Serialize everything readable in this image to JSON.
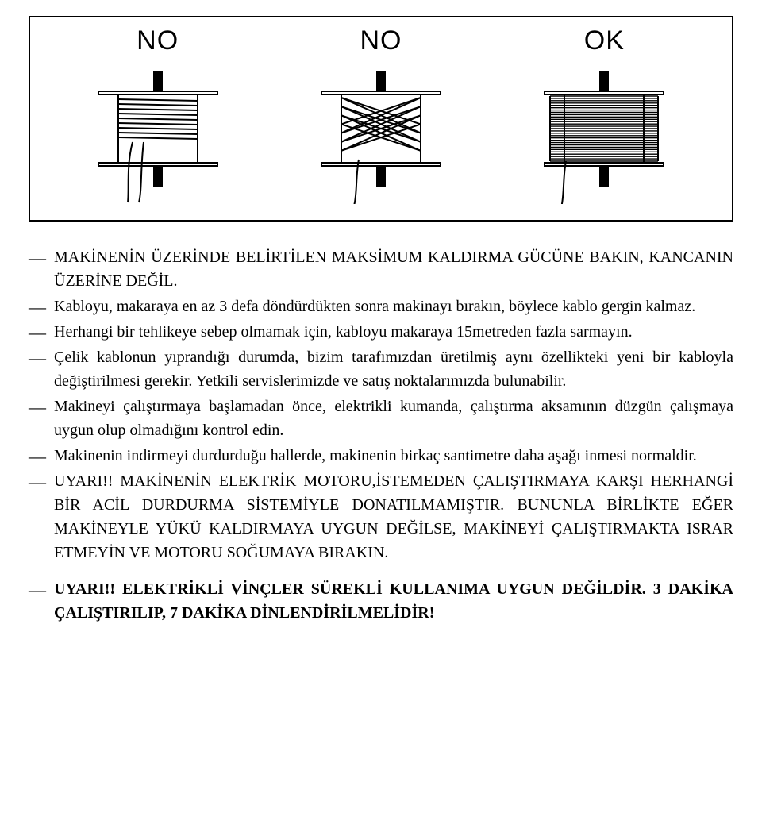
{
  "diagram": {
    "labels": [
      "NO",
      "NO",
      "OK"
    ],
    "label_font": "Arial",
    "label_fontsize": 34,
    "border_color": "#000000",
    "background": "#ffffff",
    "spool": {
      "flange_width": 150,
      "flange_height": 14,
      "drum_width": 100,
      "drum_height": 90,
      "axle_width": 12,
      "axle_extend": 28
    },
    "variants": [
      {
        "type": "sparse",
        "wraps": 9
      },
      {
        "type": "crossed",
        "wraps": 7
      },
      {
        "type": "full",
        "wraps": 28
      }
    ]
  },
  "bullets": [
    {
      "html": "MAKİNENİN ÜZERİNDE BELİRTİLEN MAKSİMUM KALDIRMA GÜCÜNE BAKIN, KANCANIN ÜZERİNE DEĞİL."
    },
    {
      "html": "Kabloyu, makaraya en az 3 defa döndürdükten sonra makinayı bırakın, böylece kablo gergin kalmaz."
    },
    {
      "html": "Herhangi bir tehlikeye sebep olmamak için, kabloyu makaraya 15metreden fazla sarmayın."
    },
    {
      "html": "Çelik kablonun yıprandığı durumda, bizim tarafımızdan üretilmiş aynı özellikteki yeni bir kabloyla değiştirilmesi gerekir. Yetkili servislerimizde ve satış noktalarımızda bulunabilir."
    },
    {
      "html": "Makineyi çalıştırmaya başlamadan önce, elektrikli kumanda, çalıştırma aksamının düzgün çalışmaya uygun olup olmadığını kontrol edin."
    },
    {
      "html": "Makinenin indirmeyi durdurduğu hallerde, makinenin birkaç santimetre daha aşağı inmesi normaldir."
    },
    {
      "html": "UYARI!! MAKİNENİN ELEKTRİK MOTORU,İSTEMEDEN ÇALIŞTIRMAYA KARŞI HERHANGİ BİR ACİL DURDURMA SİSTEMİYLE DONATILMAMIŞTIR. BUNUNLA BİRLİKTE EĞER MAKİNEYLE YÜKÜ KALDIRMAYA UYGUN DEĞİLSE, MAKİNEYİ ÇALIŞTIRMAKTA ISRAR ETMEYİN VE MOTORU SOĞUMAYA BIRAKIN."
    }
  ],
  "footer_bullets": [
    {
      "html": "UYARI!! ELEKTRİKLİ VİNÇLER SÜREKLİ KULLANIMA UYGUN DEĞİLDİR. 3 DAKİKA ÇALIŞTIRILIP, 7 DAKİKA DİNLENDİRİLMELİDİR!"
    }
  ],
  "colors": {
    "text": "#000000",
    "background": "#ffffff",
    "stroke": "#000000"
  }
}
